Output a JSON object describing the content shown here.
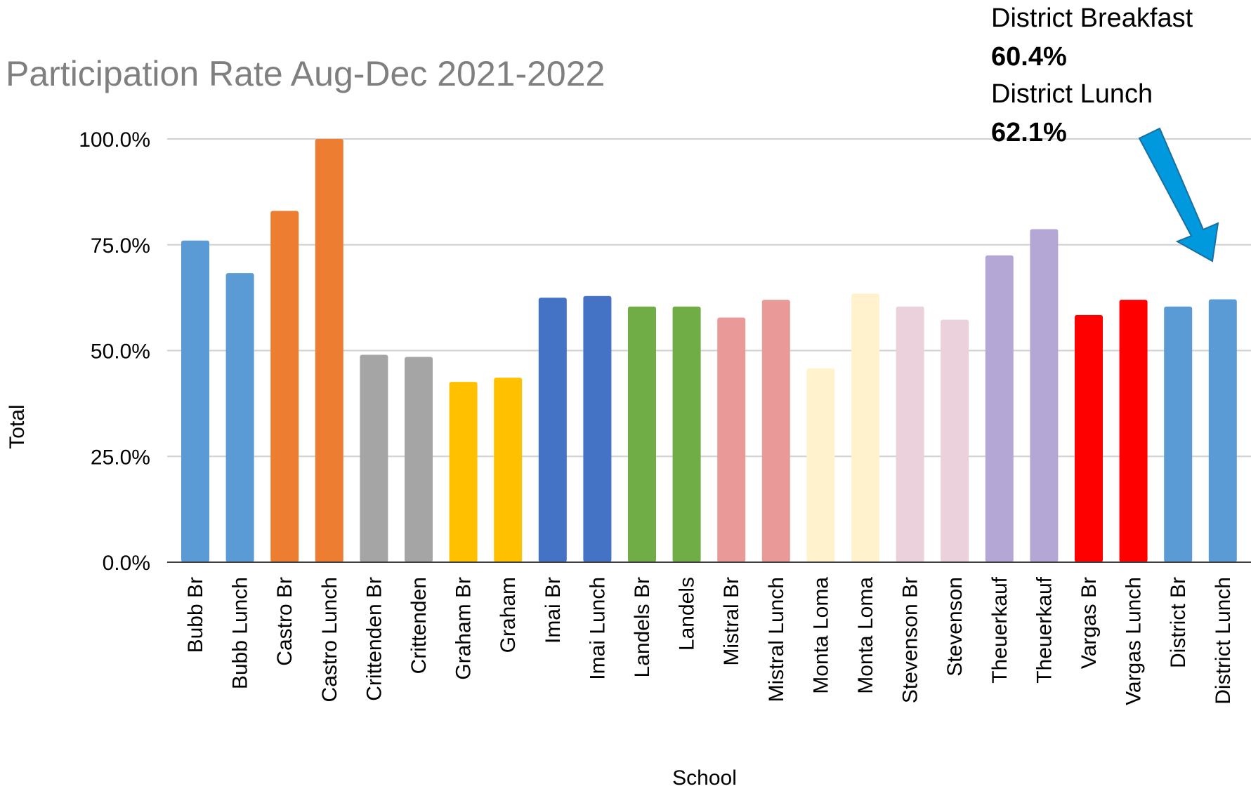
{
  "chart_data": {
    "type": "bar",
    "title": "Participation Rate Aug-Dec 2021-2022",
    "xlabel": "School",
    "ylabel": "Total",
    "ylim": [
      0,
      100
    ],
    "yticks": [
      {
        "value": 0,
        "label": "0.0%"
      },
      {
        "value": 25,
        "label": "25.0%"
      },
      {
        "value": 50,
        "label": "50.0%"
      },
      {
        "value": 75,
        "label": "75.0%"
      },
      {
        "value": 100,
        "label": "100.0%"
      }
    ],
    "grid": true,
    "legend": "none",
    "categories": [
      "Bubb Br",
      "Bubb Lunch",
      "Castro Br",
      "Castro Lunch",
      "Crittenden Br",
      "Crittenden",
      "Graham Br",
      "Graham",
      "Imai Br",
      "Imai Lunch",
      "Landels Br",
      "Landels",
      "Mistral Br",
      "Mistral Lunch",
      "Monta Loma",
      "Monta Loma",
      "Stevenson Br",
      "Stevenson",
      "Theuerkauf",
      "Theuerkauf",
      "Vargas Br",
      "Vargas Lunch",
      "District Br",
      "District Lunch"
    ],
    "values": [
      76.0,
      68.3,
      83.0,
      100.0,
      49.0,
      48.5,
      42.6,
      43.6,
      62.5,
      62.9,
      60.4,
      60.4,
      57.8,
      62.0,
      45.8,
      63.5,
      60.4,
      57.3,
      72.5,
      78.7,
      58.4,
      62.0,
      60.4,
      62.1
    ],
    "colors": [
      "#5b9bd5",
      "#5b9bd5",
      "#ed7d31",
      "#ed7d31",
      "#a5a5a5",
      "#a5a5a5",
      "#ffc000",
      "#ffc000",
      "#4472c4",
      "#4472c4",
      "#70ad47",
      "#70ad47",
      "#ea9999",
      "#ea9999",
      "#fff2cc",
      "#fff2cc",
      "#ead1dc",
      "#ead1dc",
      "#b4a7d6",
      "#b4a7d6",
      "#ff0000",
      "#ff0000",
      "#5b9bd5",
      "#5b9bd5"
    ],
    "annotation": {
      "breakfast_label": "District Breakfast",
      "breakfast_value": "60.4%",
      "lunch_label": "District Lunch",
      "lunch_value": "62.1%",
      "arrow_color": "#0099dd",
      "arrow_outline": "#1a6fa0",
      "points_to": "District Lunch"
    }
  }
}
